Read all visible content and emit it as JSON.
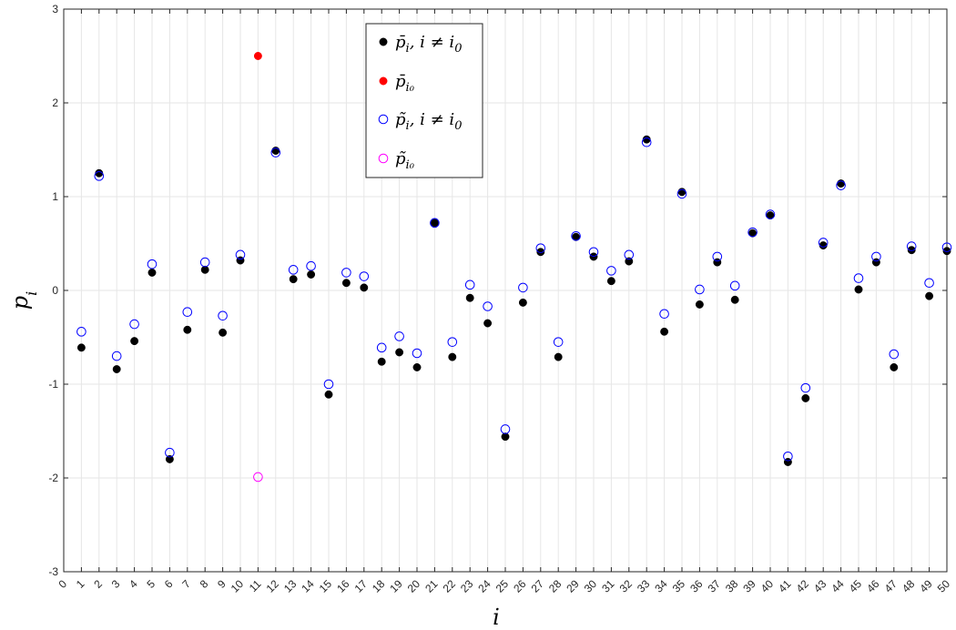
{
  "chart_data": {
    "type": "scatter",
    "xlabel": "i",
    "ylabel": "p_i",
    "xlim": [
      0,
      50
    ],
    "ylim": [
      -3,
      3
    ],
    "x_ticks": [
      0,
      1,
      2,
      3,
      4,
      5,
      6,
      7,
      8,
      9,
      10,
      11,
      12,
      13,
      14,
      15,
      16,
      17,
      18,
      19,
      20,
      21,
      22,
      23,
      24,
      25,
      26,
      27,
      28,
      29,
      30,
      31,
      32,
      33,
      34,
      35,
      36,
      37,
      38,
      39,
      40,
      41,
      42,
      43,
      44,
      45,
      46,
      47,
      48,
      49,
      50
    ],
    "y_ticks": [
      -3,
      -2,
      -1,
      0,
      1,
      2,
      3
    ],
    "grid": true,
    "legend_position": "top-center",
    "series": [
      {
        "name": "p̄ᵢ, i ≠ i₀",
        "legend_main": "p̄",
        "legend_sub": "i",
        "legend_rest": ", i ≠ i",
        "legend_rest_sub": "0",
        "marker": "filled-circle",
        "color": "#000000",
        "x": [
          1,
          2,
          3,
          4,
          5,
          6,
          7,
          8,
          9,
          10,
          12,
          13,
          14,
          15,
          16,
          17,
          18,
          19,
          20,
          21,
          22,
          23,
          24,
          25,
          26,
          27,
          28,
          29,
          30,
          31,
          32,
          33,
          34,
          35,
          36,
          37,
          38,
          39,
          40,
          41,
          42,
          43,
          44,
          45,
          46,
          47,
          48,
          49,
          50
        ],
        "y": [
          -0.61,
          1.25,
          -0.84,
          -0.54,
          0.19,
          -1.8,
          -0.42,
          0.22,
          -0.45,
          0.32,
          1.49,
          0.12,
          0.17,
          -1.11,
          0.08,
          0.03,
          -0.76,
          -0.66,
          -0.82,
          0.72,
          -0.71,
          -0.08,
          -0.35,
          -1.56,
          -0.13,
          0.41,
          -0.71,
          0.57,
          0.36,
          0.1,
          0.31,
          1.61,
          -0.44,
          1.05,
          -0.15,
          0.3,
          -0.1,
          0.61,
          0.8,
          -1.83,
          -1.15,
          0.48,
          1.14,
          0.01,
          0.3,
          -0.82,
          0.43,
          -0.06,
          0.42
        ]
      },
      {
        "name": "p̄ᵢ₀",
        "legend_main": "p̄",
        "legend_sub": "i₀",
        "legend_rest": "",
        "legend_rest_sub": "",
        "marker": "filled-circle",
        "color": "#ff0000",
        "x": [
          11
        ],
        "y": [
          2.5
        ]
      },
      {
        "name": "p̃ᵢ, i ≠ i₀",
        "legend_main": "p̃",
        "legend_sub": "i",
        "legend_rest": ", i ≠ i",
        "legend_rest_sub": "0",
        "marker": "open-circle",
        "color": "#0000ff",
        "x": [
          1,
          2,
          3,
          4,
          5,
          6,
          7,
          8,
          9,
          10,
          12,
          13,
          14,
          15,
          16,
          17,
          18,
          19,
          20,
          21,
          22,
          23,
          24,
          25,
          26,
          27,
          28,
          29,
          30,
          31,
          32,
          33,
          34,
          35,
          36,
          37,
          38,
          39,
          40,
          41,
          42,
          43,
          44,
          45,
          46,
          47,
          48,
          49,
          50
        ],
        "y": [
          -0.44,
          1.22,
          -0.7,
          -0.36,
          0.28,
          -1.73,
          -0.23,
          0.3,
          -0.27,
          0.38,
          1.47,
          0.22,
          0.26,
          -1.0,
          0.19,
          0.15,
          -0.61,
          -0.49,
          -0.67,
          0.72,
          -0.55,
          0.06,
          -0.17,
          -1.48,
          0.03,
          0.45,
          -0.55,
          0.58,
          0.41,
          0.21,
          0.38,
          1.58,
          -0.25,
          1.03,
          0.01,
          0.36,
          0.05,
          0.62,
          0.81,
          -1.77,
          -1.04,
          0.51,
          1.12,
          0.13,
          0.36,
          -0.68,
          0.47,
          0.08,
          0.46
        ]
      },
      {
        "name": "p̃ᵢ₀",
        "legend_main": "p̃",
        "legend_sub": "i₀",
        "legend_rest": "",
        "legend_rest_sub": "",
        "marker": "open-circle",
        "color": "#ff00ff",
        "x": [
          11
        ],
        "y": [
          -1.99
        ]
      }
    ]
  }
}
